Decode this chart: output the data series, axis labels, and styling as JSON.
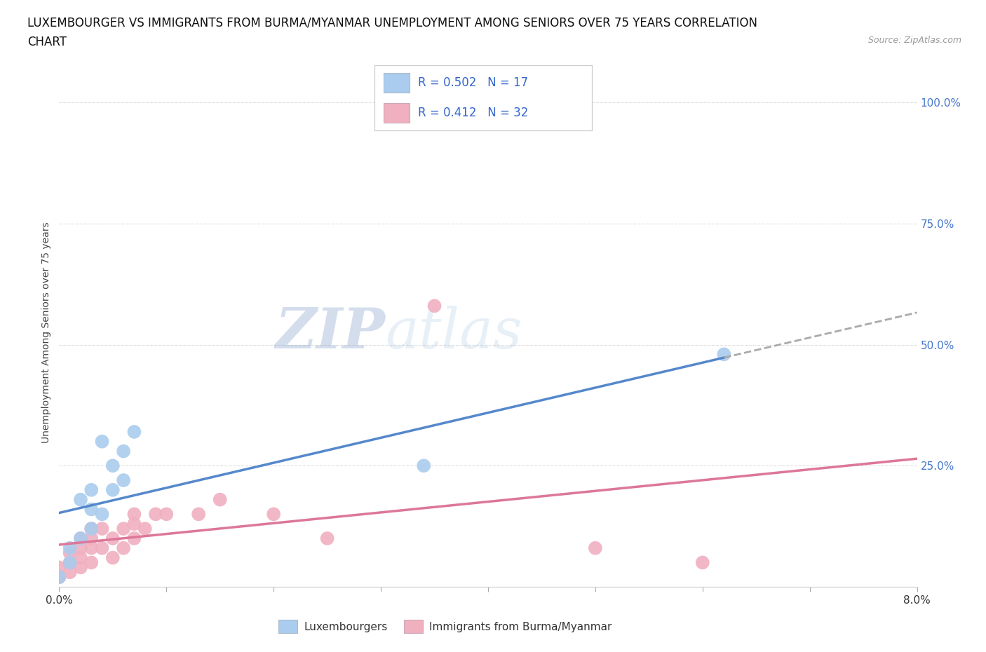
{
  "title_line1": "LUXEMBOURGER VS IMMIGRANTS FROM BURMA/MYANMAR UNEMPLOYMENT AMONG SENIORS OVER 75 YEARS CORRELATION",
  "title_line2": "CHART",
  "source_text": "Source: ZipAtlas.com",
  "ylabel": "Unemployment Among Seniors over 75 years",
  "xlim": [
    0.0,
    0.08
  ],
  "ylim": [
    0.0,
    1.05
  ],
  "xticks": [
    0.0,
    0.01,
    0.02,
    0.03,
    0.04,
    0.05,
    0.06,
    0.07,
    0.08
  ],
  "xticklabels": [
    "0.0%",
    "",
    "",
    "",
    "",
    "",
    "",
    "",
    "8.0%"
  ],
  "ytick_positions": [
    0.0,
    0.25,
    0.5,
    0.75,
    1.0
  ],
  "ytick_labels": [
    "",
    "25.0%",
    "50.0%",
    "75.0%",
    "100.0%"
  ],
  "watermark_zip": "ZIP",
  "watermark_atlas": "atlas",
  "blue_R_val": "0.502",
  "blue_N_val": "17",
  "pink_R_val": "0.412",
  "pink_N_val": "32",
  "blue_color": "#aaccee",
  "pink_color": "#f0b0c0",
  "blue_line_color": "#5588cc",
  "pink_line_color": "#dd7799",
  "gray_dash_color": "#aaaaaa",
  "luxembourgers_x": [
    0.0,
    0.001,
    0.001,
    0.002,
    0.002,
    0.003,
    0.003,
    0.003,
    0.004,
    0.004,
    0.005,
    0.005,
    0.006,
    0.006,
    0.007,
    0.034,
    0.062
  ],
  "luxembourgers_y": [
    0.02,
    0.05,
    0.08,
    0.1,
    0.18,
    0.12,
    0.16,
    0.2,
    0.15,
    0.3,
    0.2,
    0.25,
    0.22,
    0.28,
    0.32,
    0.25,
    0.48
  ],
  "burma_x": [
    0.0,
    0.0,
    0.001,
    0.001,
    0.001,
    0.002,
    0.002,
    0.002,
    0.002,
    0.003,
    0.003,
    0.003,
    0.003,
    0.004,
    0.004,
    0.005,
    0.005,
    0.006,
    0.006,
    0.007,
    0.007,
    0.007,
    0.008,
    0.009,
    0.01,
    0.013,
    0.015,
    0.02,
    0.025,
    0.035,
    0.05,
    0.06
  ],
  "burma_y": [
    0.02,
    0.04,
    0.03,
    0.05,
    0.07,
    0.04,
    0.06,
    0.08,
    0.1,
    0.05,
    0.08,
    0.1,
    0.12,
    0.08,
    0.12,
    0.06,
    0.1,
    0.08,
    0.12,
    0.1,
    0.13,
    0.15,
    0.12,
    0.15,
    0.15,
    0.15,
    0.18,
    0.15,
    0.1,
    0.58,
    0.08,
    0.05
  ],
  "background_color": "#ffffff",
  "grid_color": "#dddddd",
  "title_fontsize": 12,
  "axis_label_fontsize": 10,
  "tick_fontsize": 11,
  "legend_fontsize": 13
}
